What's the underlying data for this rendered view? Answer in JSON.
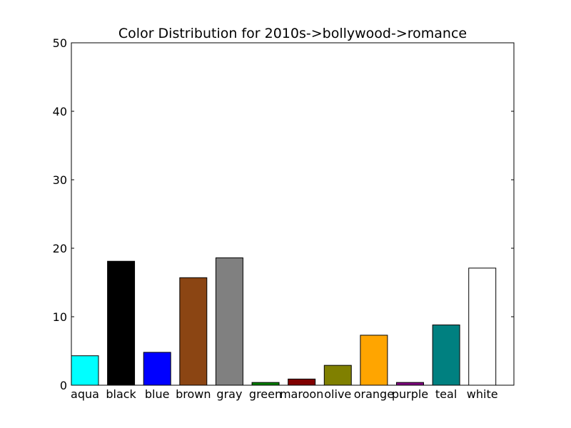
{
  "chart_data": {
    "type": "bar",
    "title": "Color Distribution for 2010s->bollywood->romance",
    "xlabel": "",
    "ylabel": "",
    "ylim": [
      0,
      50
    ],
    "yticks": [
      "0",
      "10",
      "20",
      "30",
      "40",
      "50"
    ],
    "grid": false,
    "categories": [
      "aqua",
      "black",
      "blue",
      "brown",
      "gray",
      "green",
      "maroon",
      "olive",
      "orange",
      "purple",
      "teal",
      "white"
    ],
    "values": [
      4.3,
      18.1,
      4.8,
      15.7,
      18.6,
      0.4,
      0.9,
      2.9,
      7.3,
      0.4,
      8.8,
      17.1
    ],
    "bar_colors": [
      "#00ffff",
      "#000000",
      "#0000ff",
      "#8b4513",
      "#808080",
      "#008000",
      "#800000",
      "#808000",
      "#ffa500",
      "#800080",
      "#008080",
      "#ffffff"
    ]
  }
}
